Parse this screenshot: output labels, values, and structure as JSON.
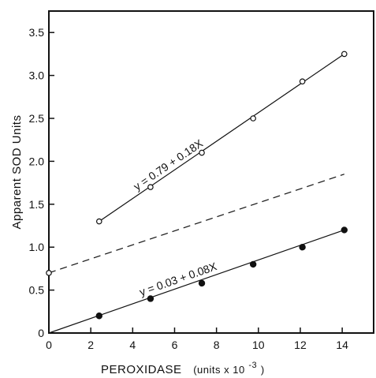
{
  "chart_data": {
    "type": "scatter",
    "xlabel": "PEROXIDASE",
    "xlabel_units": "(units x 10",
    "xlabel_exp": "-3",
    "xlabel_close": ")",
    "ylabel": "Apparent SOD Units",
    "xlim": [
      0,
      15.5
    ],
    "ylim": [
      0,
      3.75
    ],
    "x_ticks": [
      0,
      2,
      4,
      6,
      8,
      10,
      12,
      14
    ],
    "x_tick_labels": [
      "0",
      "2",
      "4",
      "6",
      "8",
      "10",
      "12",
      "14"
    ],
    "y_ticks": [
      0,
      0.5,
      1.0,
      1.5,
      2.0,
      2.5,
      3.0,
      3.5
    ],
    "y_tick_labels": [
      "0",
      "0.5",
      "1.0",
      "1.5",
      "2.0",
      "2.5",
      "3.0",
      "3.5"
    ],
    "grid": false,
    "series": [
      {
        "marker": "open-circle",
        "x": [
          2.4,
          4.85,
          7.3,
          9.75,
          12.1,
          14.1
        ],
        "y": [
          1.3,
          1.7,
          2.1,
          2.5,
          2.93,
          3.25
        ],
        "fit_line": {
          "x": [
            2.4,
            14.1
          ],
          "y": [
            1.3,
            3.25
          ],
          "style": "solid"
        },
        "equation": "y = 0.79 + 0.18X"
      },
      {
        "marker": "filled-circle",
        "x": [
          2.4,
          4.85,
          7.3,
          9.75,
          12.1,
          14.1
        ],
        "y": [
          0.2,
          0.4,
          0.58,
          0.8,
          1.0,
          1.2
        ],
        "fit_line": {
          "x": [
            0,
            14.1
          ],
          "y": [
            0,
            1.2
          ],
          "style": "solid"
        },
        "equation": "y = 0.03 + 0.08X"
      },
      {
        "marker": "open-circle",
        "x": [
          0
        ],
        "y": [
          0.7
        ],
        "fit_line": {
          "x": [
            0,
            14.1
          ],
          "y": [
            0.7,
            1.85
          ],
          "style": "dashed"
        }
      }
    ]
  }
}
